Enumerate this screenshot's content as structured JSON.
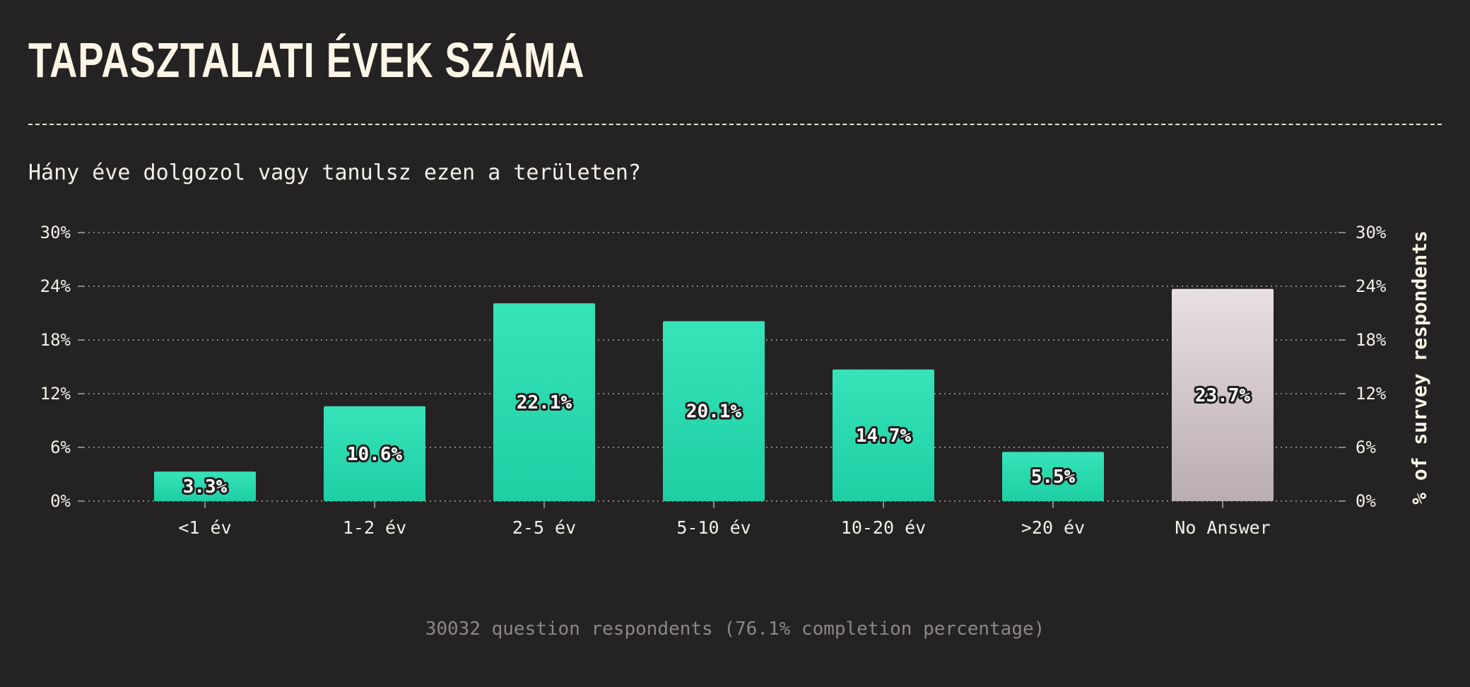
{
  "title": "TAPASZTALATI ÉVEK SZÁMA",
  "question": "Hány éve dolgozol vagy tanulsz ezen a területen?",
  "footer": "30032 question respondents (76.1% completion percentage)",
  "colors": {
    "background": "#252223",
    "bar_top": "#37e3b9",
    "bar_bottom": "#1ecfa4",
    "no_answer_top": "#eadfe1",
    "no_answer_bottom": "#b9adb0",
    "grid": "#8a8587"
  },
  "chart_data": {
    "type": "bar",
    "categories": [
      "<1 év",
      "1-2 év",
      "2-5 év",
      "5-10 év",
      "10-20 év",
      ">20 év",
      "No Answer"
    ],
    "values": [
      3.3,
      10.6,
      22.1,
      20.1,
      14.7,
      5.5,
      23.7
    ],
    "value_labels": [
      "3.3%",
      "10.6%",
      "22.1%",
      "20.1%",
      "14.7%",
      "5.5%",
      "23.7%"
    ],
    "ylim": [
      0,
      30
    ],
    "yticks": [
      "0%",
      "6%",
      "12%",
      "18%",
      "24%",
      "30%"
    ],
    "ylabel": "% of survey respondents",
    "grid": true,
    "highlight_category": "No Answer"
  }
}
